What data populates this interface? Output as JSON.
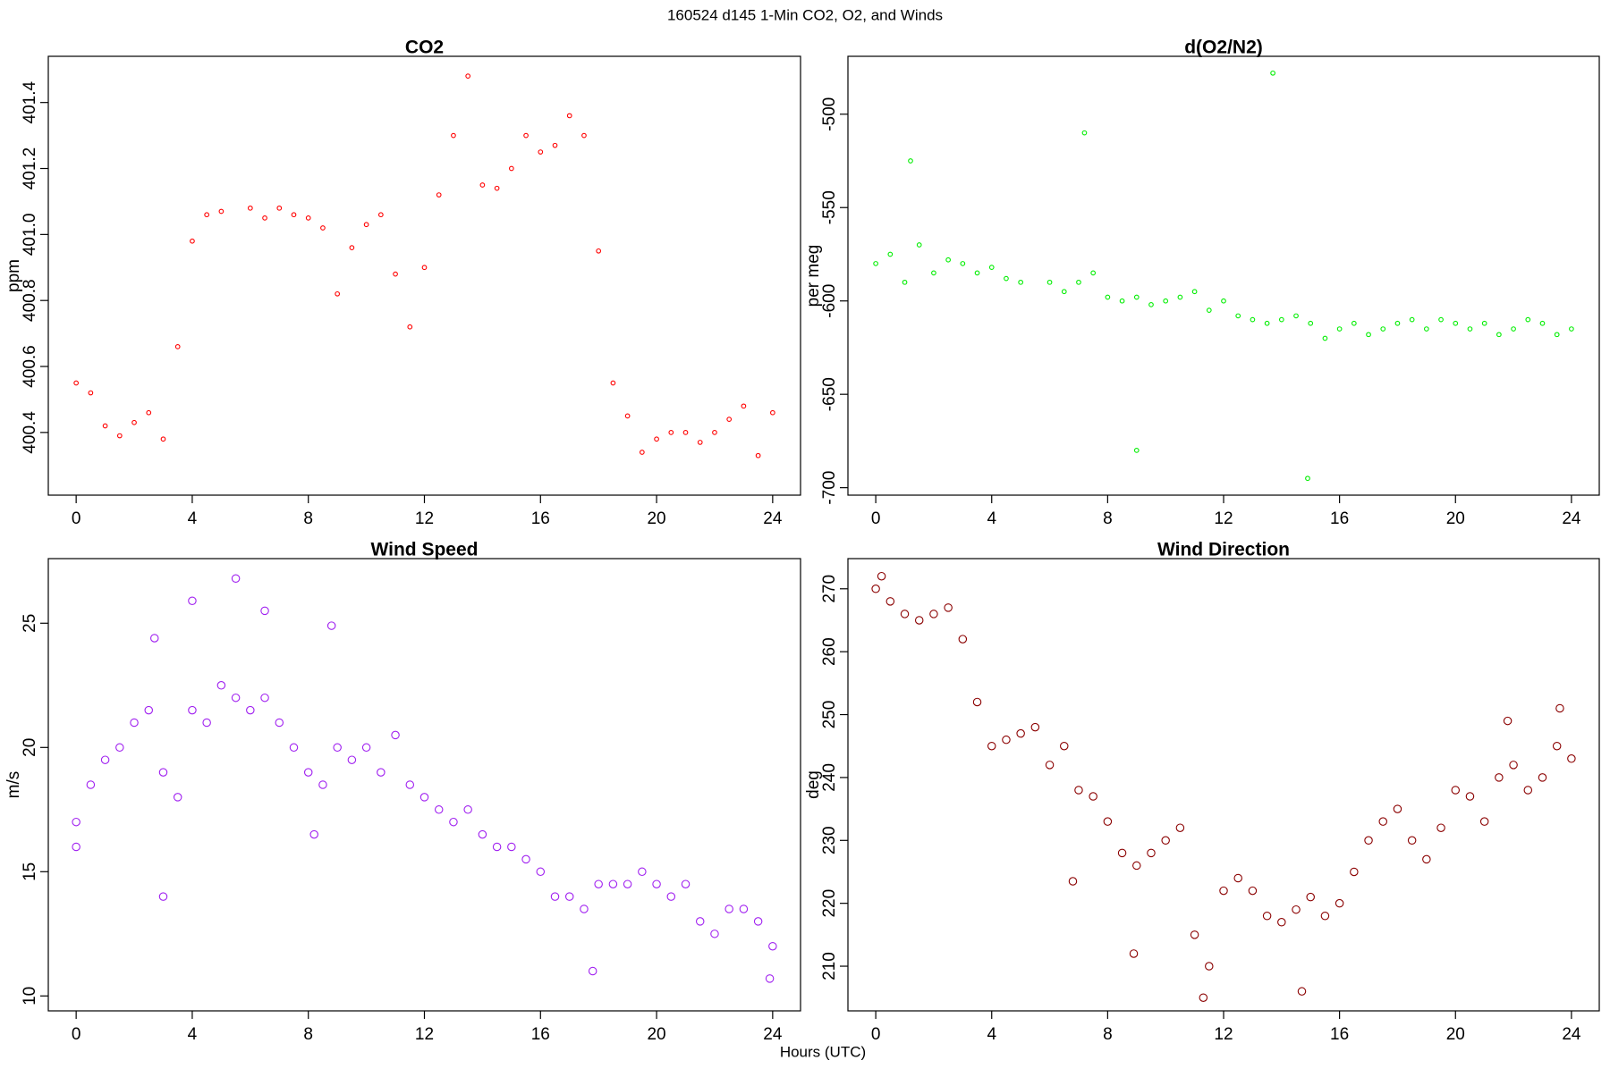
{
  "title": "160524   d145   1-Min CO2, O2, and Winds",
  "x_label": "Hours (UTC)",
  "chart_data": [
    {
      "type": "scatter",
      "title": "CO2",
      "y_label": "ppm",
      "color": "#ff0000",
      "x": [
        0,
        0.5,
        1,
        1.5,
        2,
        2.5,
        3,
        3.5,
        4,
        4.5,
        5,
        6,
        6.5,
        7,
        7.5,
        8,
        8.5,
        9,
        9.5,
        10,
        10.5,
        11,
        11.5,
        12,
        12.5,
        13,
        13.5,
        14,
        14.5,
        15,
        15.5,
        16,
        16.5,
        17,
        17.5,
        18,
        18.5,
        19,
        19.5,
        20,
        20.5,
        21,
        21.5,
        22,
        22.5,
        23,
        23.5,
        24
      ],
      "values": [
        400.55,
        400.52,
        400.42,
        400.39,
        400.43,
        400.46,
        400.38,
        400.66,
        400.98,
        401.06,
        401.07,
        401.08,
        401.05,
        401.08,
        401.06,
        401.05,
        401.02,
        400.82,
        400.96,
        401.03,
        401.06,
        400.88,
        400.72,
        400.9,
        401.12,
        401.3,
        401.48,
        401.15,
        401.14,
        401.2,
        401.3,
        401.25,
        401.27,
        401.36,
        401.3,
        400.95,
        400.55,
        400.45,
        400.34,
        400.38,
        400.4,
        400.4,
        400.37,
        400.4,
        400.44,
        400.48,
        400.33,
        400.46
      ],
      "xlim": [
        -0.96,
        24.96
      ],
      "xticks": [
        0,
        4,
        8,
        12,
        16,
        20,
        24
      ],
      "ylim": [
        400.21,
        401.54
      ],
      "yticks": [
        400.4,
        400.6,
        400.8,
        {
          "value": 401,
          "label": "401.0"
        },
        401.2,
        401.4
      ]
    },
    {
      "type": "scatter",
      "title": "d(O2/N2)",
      "y_label": "per meg",
      "color": "#00ee00",
      "x": [
        0,
        0.5,
        1,
        1.5,
        2,
        2.5,
        3,
        3.5,
        4,
        4.5,
        5,
        6,
        6.5,
        7,
        7.5,
        8,
        8.5,
        9,
        9.5,
        10,
        10.5,
        11,
        11.5,
        12,
        12.5,
        13,
        13.5,
        14,
        14.5,
        15,
        15.5,
        16,
        16.5,
        17,
        17.5,
        18,
        18.5,
        19,
        19.5,
        20,
        20.5,
        21,
        21.5,
        22,
        22.5,
        23,
        23.5,
        24,
        1.2,
        7.2,
        9.0,
        13.7,
        14.9
      ],
      "values": [
        -580,
        -575,
        -590,
        -570,
        -585,
        -578,
        -580,
        -585,
        -582,
        -588,
        -590,
        -590,
        -595,
        -590,
        -585,
        -598,
        -600,
        -598,
        -602,
        -600,
        -598,
        -595,
        -605,
        -600,
        -608,
        -610,
        -612,
        -610,
        -608,
        -612,
        -620,
        -615,
        -612,
        -618,
        -615,
        -612,
        -610,
        -615,
        -610,
        -612,
        -615,
        -612,
        -618,
        -615,
        -610,
        -612,
        -618,
        -615,
        -525,
        -510,
        -680,
        -478,
        -695
      ],
      "xlim": [
        -0.96,
        24.96
      ],
      "xticks": [
        0,
        4,
        8,
        12,
        16,
        20,
        24
      ],
      "ylim": [
        -704,
        -469
      ],
      "yticks": [
        -700,
        -650,
        -600,
        -550,
        -500
      ]
    },
    {
      "type": "scatter",
      "title": "Wind Speed",
      "y_label": "m/s",
      "color": "#a020f0",
      "x": [
        0,
        0.5,
        1,
        1.5,
        2,
        2.5,
        3,
        3.5,
        4,
        4.5,
        5,
        5.5,
        6,
        6.5,
        7,
        7.5,
        8,
        8.5,
        9,
        9.5,
        10,
        10.5,
        11,
        11.5,
        12,
        12.5,
        13,
        13.5,
        14,
        14.5,
        15,
        15.5,
        16,
        16.5,
        17,
        17.5,
        18,
        18.5,
        19,
        19.5,
        20,
        20.5,
        21,
        21.5,
        22,
        22.5,
        23,
        23.5,
        24,
        3.0,
        5.5,
        4.0,
        6.5,
        0.0,
        8.8,
        17.8,
        23.9,
        2.7,
        8.2
      ],
      "values": [
        17,
        18.5,
        19.5,
        20,
        21,
        21.5,
        19,
        18,
        21.5,
        21,
        22.5,
        22,
        21.5,
        22,
        21,
        20,
        19,
        18.5,
        20,
        19.5,
        20,
        19,
        20.5,
        18.5,
        18,
        17.5,
        17,
        17.5,
        16.5,
        16,
        16,
        15.5,
        15,
        14,
        14,
        13.5,
        14.5,
        14.5,
        14.5,
        15,
        14.5,
        14,
        14.5,
        13,
        12.5,
        13.5,
        13.5,
        13,
        12,
        14,
        26.8,
        25.9,
        25.5,
        16,
        24.9,
        11,
        10.7,
        24.4,
        16.5
      ],
      "xlim": [
        -0.96,
        24.96
      ],
      "xticks": [
        0,
        4,
        8,
        12,
        16,
        20,
        24
      ],
      "ylim": [
        9.4,
        27.6
      ],
      "yticks": [
        10,
        15,
        20,
        25
      ]
    },
    {
      "type": "scatter",
      "title": "Wind Direction",
      "y_label": "deg",
      "color": "#8b0000",
      "x": [
        0,
        0.5,
        1,
        1.5,
        2,
        2.5,
        3,
        3.5,
        4,
        4.5,
        5,
        5.5,
        6,
        6.5,
        7,
        7.5,
        8,
        8.5,
        9,
        9.5,
        10,
        10.5,
        11,
        11.5,
        12,
        12.5,
        13,
        13.5,
        14,
        14.5,
        15,
        15.5,
        16,
        16.5,
        17,
        17.5,
        18,
        18.5,
        19,
        19.5,
        20,
        20.5,
        21,
        21.5,
        22,
        22.5,
        23,
        23.5,
        24,
        11.3,
        14.7,
        6.8,
        8.9,
        23.6,
        21.8,
        0.2
      ],
      "values": [
        270,
        268,
        266,
        265,
        266,
        267,
        262,
        252,
        245,
        246,
        247,
        248,
        242,
        245,
        238,
        237,
        233,
        228,
        226,
        228,
        230,
        232,
        215,
        210,
        222,
        224,
        222,
        218,
        217,
        219,
        221,
        218,
        220,
        225,
        230,
        233,
        235,
        230,
        227,
        232,
        238,
        237,
        233,
        240,
        242,
        238,
        240,
        245,
        243,
        205,
        206,
        223.5,
        212,
        251,
        249,
        272
      ],
      "xlim": [
        -0.96,
        24.96
      ],
      "xticks": [
        0,
        4,
        8,
        12,
        16,
        20,
        24
      ],
      "ylim": [
        202.9,
        274.8
      ],
      "yticks": [
        210,
        220,
        230,
        240,
        250,
        260,
        270
      ]
    }
  ]
}
